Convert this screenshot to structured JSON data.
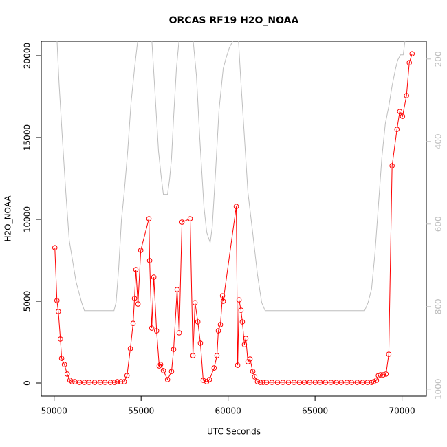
{
  "chart_data": {
    "type": "line",
    "title": "ORCAS RF19 H2O_NOAA",
    "xlabel": "UTC Seconds",
    "ylabel": "H2O_NOAA",
    "xlim": [
      49260,
      71400
    ],
    "ylim": [
      -798,
      20882
    ],
    "y2lim": [
      1017,
      157
    ],
    "xticks": [
      50000,
      55000,
      60000,
      65000,
      70000
    ],
    "yticks": [
      0,
      5000,
      10000,
      15000,
      20000
    ],
    "y2ticks": [
      200,
      400,
      600,
      800,
      1000
    ],
    "series": [
      {
        "color": "#ff0000",
        "markers": true,
        "x": [
          50040,
          50160,
          50240,
          50360,
          50430,
          50590,
          50750,
          50910,
          51030,
          51190,
          51460,
          51740,
          52010,
          52330,
          52650,
          52920,
          53240,
          53480,
          53630,
          53830,
          54030,
          54190,
          54380,
          54540,
          54620,
          54700,
          54820,
          54980,
          55450,
          55490,
          55610,
          55730,
          55890,
          56040,
          56120,
          56280,
          56520,
          56750,
          56870,
          57070,
          57190,
          57350,
          57820,
          57980,
          58100,
          58260,
          58410,
          58570,
          58770,
          58930,
          59200,
          59360,
          59440,
          59560,
          59680,
          59720,
          60470,
          60550,
          60630,
          60740,
          60820,
          60940,
          61020,
          61140,
          61260,
          61420,
          61530,
          61690,
          61850,
          62010,
          62210,
          62520,
          62840,
          63150,
          63470,
          63790,
          64100,
          64380,
          64690,
          65010,
          65290,
          65600,
          65920,
          66230,
          66510,
          66830,
          67100,
          67420,
          67740,
          68010,
          68250,
          68370,
          68530,
          68640,
          68760,
          68920,
          69080,
          69240,
          69430,
          69710,
          69870,
          70030,
          70260,
          70420,
          70580
        ],
        "values": [
          8270,
          5040,
          4370,
          2690,
          1510,
          1130,
          550,
          170,
          80,
          80,
          40,
          40,
          40,
          40,
          40,
          40,
          40,
          40,
          80,
          80,
          80,
          460,
          2100,
          3650,
          5170,
          6930,
          4830,
          8110,
          10040,
          7480,
          3360,
          6470,
          3190,
          1050,
          1130,
          760,
          210,
          710,
          2060,
          5710,
          3070,
          9830,
          10040,
          1680,
          4910,
          3740,
          2440,
          170,
          80,
          210,
          920,
          1680,
          3190,
          3570,
          5330,
          5000,
          10790,
          1090,
          5080,
          4450,
          3740,
          2350,
          2730,
          1300,
          1470,
          710,
          380,
          80,
          40,
          40,
          40,
          40,
          40,
          40,
          40,
          40,
          40,
          40,
          40,
          40,
          40,
          40,
          40,
          40,
          40,
          40,
          40,
          40,
          40,
          40,
          40,
          80,
          170,
          460,
          500,
          500,
          550,
          1760,
          13270,
          15500,
          16590,
          16300,
          17560,
          19570,
          20120
        ]
      },
      {
        "color": "#bebebe",
        "axis": "y2",
        "markers": false,
        "x": [
          50160,
          50280,
          50470,
          50670,
          50870,
          51260,
          51580,
          51740,
          53440,
          53560,
          53710,
          53870,
          54030,
          54230,
          54420,
          54620,
          54820,
          55610,
          55810,
          56000,
          56160,
          56280,
          56520,
          56640,
          56750,
          56870,
          57030,
          57190,
          57980,
          58180,
          58370,
          58610,
          58770,
          58970,
          59090,
          59280,
          59480,
          59720,
          59880,
          60070,
          60350,
          60590,
          60740,
          60940,
          61140,
          61420,
          61690,
          61930,
          62130,
          67850,
          68050,
          68250,
          68440,
          68640,
          68840,
          69040,
          69240,
          69430,
          69630,
          69750,
          69910,
          70070,
          70190
        ],
        "values": [
          150,
          257,
          390,
          523,
          640,
          740,
          790,
          810,
          810,
          790,
          707,
          590,
          523,
          423,
          307,
          223,
          150,
          150,
          290,
          423,
          487,
          528,
          528,
          490,
          440,
          340,
          223,
          150,
          150,
          240,
          390,
          557,
          620,
          645,
          607,
          473,
          323,
          223,
          198,
          173,
          150,
          150,
          257,
          390,
          523,
          623,
          723,
          790,
          810,
          810,
          790,
          757,
          673,
          557,
          440,
          357,
          315,
          265,
          223,
          203,
          190,
          190,
          150
        ]
      }
    ]
  }
}
